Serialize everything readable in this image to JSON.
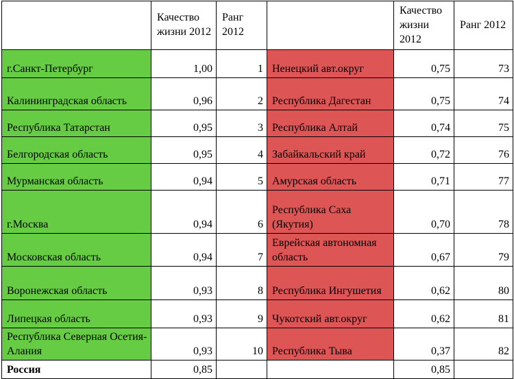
{
  "header": {
    "quality_label": "Качество жизни 2012",
    "rank_label": "Ранг 2012"
  },
  "colors": {
    "top_region_bg": "#66cc44",
    "bottom_region_bg": "#dd5555"
  },
  "rows": [
    {
      "left_region": "г.Санкт-Петербург",
      "left_quality": "1,00",
      "left_rank": "1",
      "right_region": "Ненецкий авт.округ",
      "right_quality": "0,75",
      "right_rank": "73"
    },
    {
      "left_region": "Калининградская область",
      "left_quality": "0,96",
      "left_rank": "2",
      "right_region": "Республика Дагестан",
      "right_quality": "0,75",
      "right_rank": "74"
    },
    {
      "left_region": "Республика Татарстан",
      "left_quality": "0,95",
      "left_rank": "3",
      "right_region": "Республика Алтай",
      "right_quality": "0,74",
      "right_rank": "75"
    },
    {
      "left_region": "Белгородская область",
      "left_quality": "0,95",
      "left_rank": "4",
      "right_region": "Забайкальский край",
      "right_quality": "0,72",
      "right_rank": "76"
    },
    {
      "left_region": "Мурманская область",
      "left_quality": "0,94",
      "left_rank": "5",
      "right_region": "Амурская область",
      "right_quality": "0,71",
      "right_rank": "77"
    },
    {
      "left_region": "г.Москва",
      "left_quality": "0,94",
      "left_rank": "6",
      "right_region": "Республика Саха (Якутия)",
      "right_quality": "0,70",
      "right_rank": "78"
    },
    {
      "left_region": "Московская область",
      "left_quality": "0,94",
      "left_rank": "7",
      "right_region": "Еврейская автономная область",
      "right_quality": "0,67",
      "right_rank": "79"
    },
    {
      "left_region": "Воронежская область",
      "left_quality": "0,93",
      "left_rank": "8",
      "right_region": "Республика Ингушетия",
      "right_quality": "0,62",
      "right_rank": "80"
    },
    {
      "left_region": "Липецкая область",
      "left_quality": "0,93",
      "left_rank": "9",
      "right_region": "Чукотский авт.округ",
      "right_quality": "0,62",
      "right_rank": "81"
    },
    {
      "left_region": "Республика Северная Осетия-Алания",
      "left_quality": "0,93",
      "left_rank": "10",
      "right_region": "Республика Тыва",
      "right_quality": "0,37",
      "right_rank": "82"
    }
  ],
  "footer": {
    "label": "Россия",
    "left_quality": "0,85",
    "right_quality": "0,85"
  }
}
